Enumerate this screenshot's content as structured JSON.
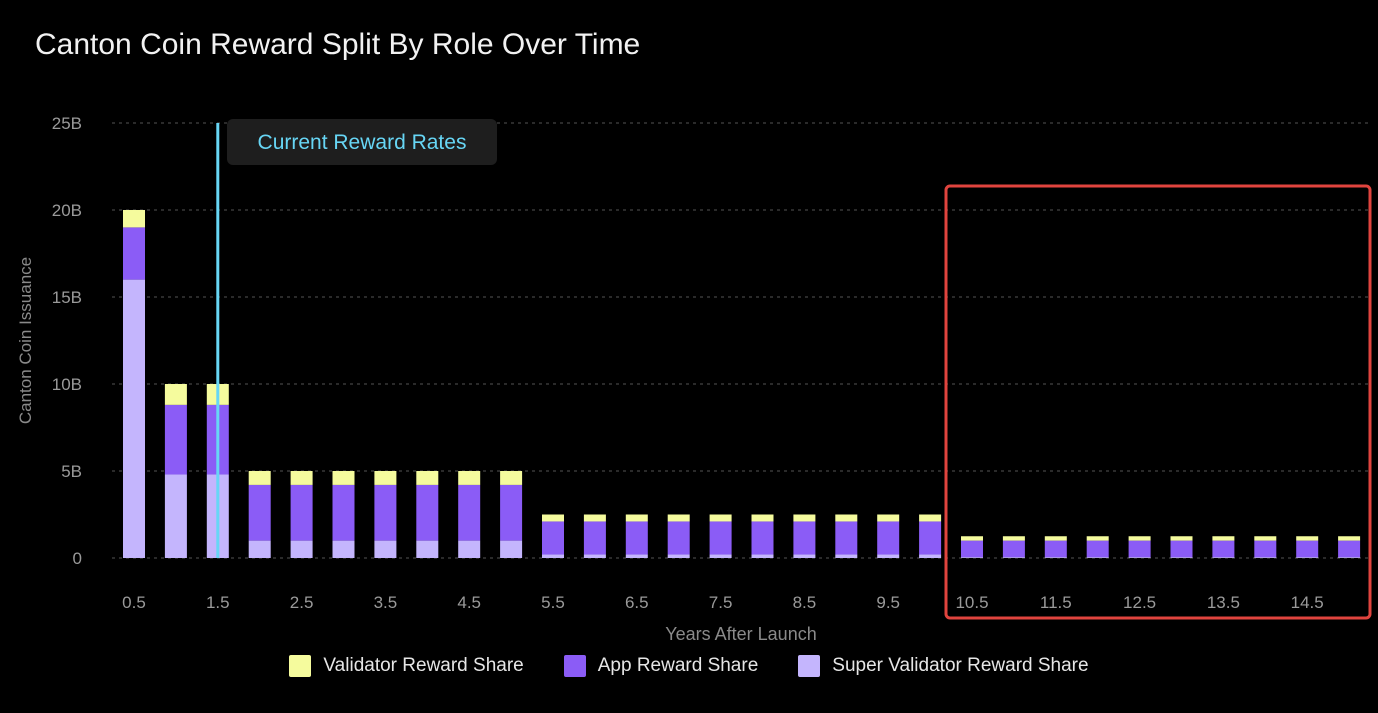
{
  "title": "Canton Coin Reward Split By Role Over Time",
  "annotation": "Current Reward Rates",
  "colors": {
    "super_validator": "#c4b5fd",
    "app": "#8b5cf6",
    "validator": "#f5fb9d",
    "marker_line": "#67d6f5",
    "highlight_box": "#e0443e"
  },
  "chart_data": {
    "type": "bar",
    "stacked": true,
    "title": "Canton Coin Reward Split By Role Over Time",
    "xlabel": "Years After Launch",
    "ylabel": "Canton Coin Issuance",
    "ylim": [
      0,
      25
    ],
    "y_ticks": [
      "0",
      "5B",
      "10B",
      "15B",
      "20B",
      "25B"
    ],
    "x_tick_labels": [
      "0.5",
      "1.5",
      "2.5",
      "3.5",
      "4.5",
      "5.5",
      "6.5",
      "7.5",
      "8.5",
      "9.5",
      "10.5",
      "11.5",
      "12.5",
      "13.5",
      "14.5"
    ],
    "categories": [
      0.5,
      1,
      1.5,
      2,
      2.5,
      3,
      3.5,
      4,
      4.5,
      5,
      5.5,
      6,
      6.5,
      7,
      7.5,
      8,
      8.5,
      9,
      9.5,
      10,
      10.5,
      11,
      11.5,
      12,
      12.5,
      13,
      13.5,
      14,
      14.5,
      15
    ],
    "series": [
      {
        "name": "Super Validator Reward Share",
        "values": [
          16.0,
          4.8,
          4.8,
          1.0,
          1.0,
          1.0,
          1.0,
          1.0,
          1.0,
          1.0,
          0.2,
          0.2,
          0.2,
          0.2,
          0.2,
          0.2,
          0.2,
          0.2,
          0.2,
          0.2,
          0.05,
          0.05,
          0.05,
          0.05,
          0.05,
          0.05,
          0.05,
          0.05,
          0.05,
          0.05
        ]
      },
      {
        "name": "App Reward Share",
        "values": [
          3.0,
          4.0,
          4.0,
          3.2,
          3.2,
          3.2,
          3.2,
          3.2,
          3.2,
          3.2,
          1.9,
          1.9,
          1.9,
          1.9,
          1.9,
          1.9,
          1.9,
          1.9,
          1.9,
          1.9,
          0.95,
          0.95,
          0.95,
          0.95,
          0.95,
          0.95,
          0.95,
          0.95,
          0.95,
          0.95
        ]
      },
      {
        "name": "Validator Reward Share",
        "values": [
          1.0,
          1.2,
          1.2,
          0.8,
          0.8,
          0.8,
          0.8,
          0.8,
          0.8,
          0.8,
          0.4,
          0.4,
          0.4,
          0.4,
          0.4,
          0.4,
          0.4,
          0.4,
          0.4,
          0.4,
          0.25,
          0.25,
          0.25,
          0.25,
          0.25,
          0.25,
          0.25,
          0.25,
          0.25,
          0.25
        ]
      }
    ],
    "marker": {
      "x": 1.5,
      "label": "Current Reward Rates"
    },
    "highlight_range": [
      10.5,
      15
    ],
    "grid": true,
    "legend_position": "bottom"
  },
  "legend": [
    {
      "label": "Validator Reward Share",
      "color": "#f5fb9d"
    },
    {
      "label": "App Reward Share",
      "color": "#8b5cf6"
    },
    {
      "label": "Super Validator Reward Share",
      "color": "#c4b5fd"
    }
  ]
}
